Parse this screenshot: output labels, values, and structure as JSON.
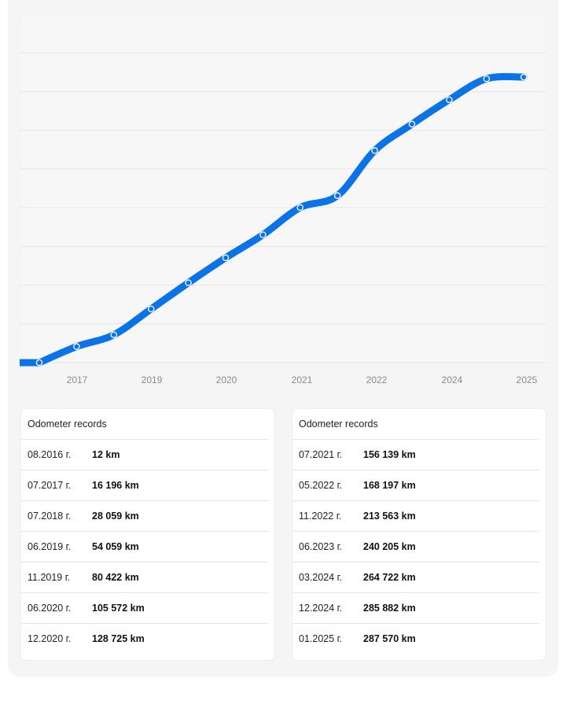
{
  "chart_data": {
    "type": "line",
    "title": "",
    "xlabel": "",
    "ylabel": "",
    "x_ticks": [
      "2017",
      "2019",
      "2020",
      "2021",
      "2022",
      "2024",
      "2025"
    ],
    "grid": true,
    "line_color": "#0a73e8",
    "series": [
      {
        "points": [
          {
            "label": "08.2016",
            "value": 12
          },
          {
            "label": "07.2017",
            "value": 16196
          },
          {
            "label": "07.2018",
            "value": 28059
          },
          {
            "label": "06.2019",
            "value": 54059
          },
          {
            "label": "11.2019",
            "value": 80422
          },
          {
            "label": "06.2020",
            "value": 105572
          },
          {
            "label": "12.2020",
            "value": 128725
          },
          {
            "label": "07.2021",
            "value": 156139
          },
          {
            "label": "05.2022",
            "value": 168197
          },
          {
            "label": "11.2022",
            "value": 213563
          },
          {
            "label": "06.2023",
            "value": 240205
          },
          {
            "label": "03.2024",
            "value": 264722
          },
          {
            "label": "12.2024",
            "value": 285882
          },
          {
            "label": "01.2025",
            "value": 287570
          }
        ]
      }
    ]
  },
  "tables": [
    {
      "title": "Odometer records",
      "rows": [
        {
          "date": "08.2016 г.",
          "km": "12 km"
        },
        {
          "date": "07.2017 г.",
          "km": "16 196 km"
        },
        {
          "date": "07.2018 г.",
          "km": "28 059 km"
        },
        {
          "date": "06.2019 г.",
          "km": "54 059 km"
        },
        {
          "date": "11.2019 г.",
          "km": "80 422 km"
        },
        {
          "date": "06.2020 г.",
          "km": "105 572 km"
        },
        {
          "date": "12.2020 г.",
          "km": "128 725 km"
        }
      ]
    },
    {
      "title": "Odometer records",
      "rows": [
        {
          "date": "07.2021 г.",
          "km": "156 139 km"
        },
        {
          "date": "05.2022 г.",
          "km": "168 197 km"
        },
        {
          "date": "11.2022 г.",
          "km": "213 563 km"
        },
        {
          "date": "06.2023 г.",
          "km": "240 205 km"
        },
        {
          "date": "03.2024 г.",
          "km": "264 722 km"
        },
        {
          "date": "12.2024 г.",
          "km": "285 882 km"
        },
        {
          "date": "01.2025 г.",
          "km": "287 570 km"
        }
      ]
    }
  ]
}
